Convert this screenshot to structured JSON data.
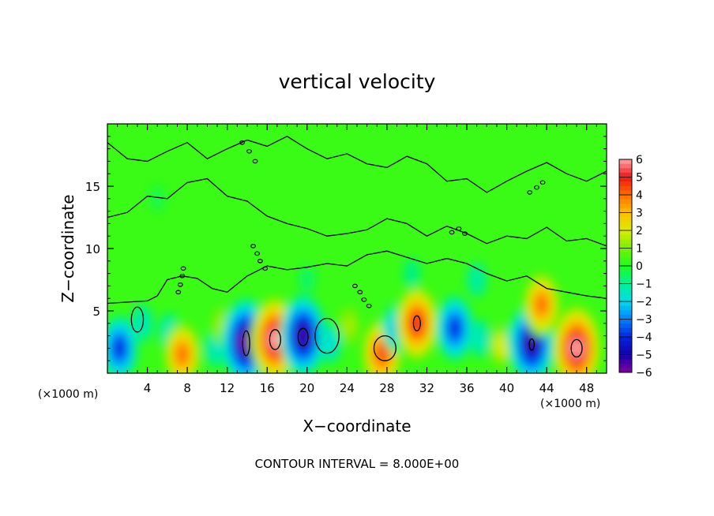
{
  "chart_data": {
    "type": "heatmap",
    "title": "vertical velocity",
    "xlabel": "X−coordinate",
    "ylabel": "Z−coordinate",
    "x_unit_left": "(×1000 m)",
    "x_unit_right": "(×1000 m)",
    "footer": "CONTOUR INTERVAL = 8.000E+00",
    "xlim": [
      0,
      50
    ],
    "ylim": [
      0,
      20
    ],
    "x_ticks": [
      4,
      8,
      12,
      16,
      20,
      24,
      28,
      32,
      36,
      40,
      44,
      48
    ],
    "y_ticks": [
      5,
      10,
      15
    ],
    "colorbar": {
      "range": [
        -6,
        6
      ],
      "ticks": [
        "6",
        "5",
        "4",
        "3",
        "2",
        "1",
        "0",
        "−1",
        "−2",
        "−3",
        "−4",
        "−5",
        "−6"
      ],
      "tick_values": [
        6,
        5,
        4,
        3,
        2,
        1,
        0,
        -1,
        -2,
        -3,
        -4,
        -5,
        -6
      ]
    },
    "background_value": 0.3,
    "features": [
      {
        "x": 1.2,
        "z": 2.0,
        "value": -4.0
      },
      {
        "x": 3.5,
        "z": 4.0,
        "value": -1.5
      },
      {
        "x": 6.2,
        "z": 3.3,
        "value": -1.5
      },
      {
        "x": 7.5,
        "z": 1.5,
        "value": 4.0
      },
      {
        "x": 10.8,
        "z": 2.0,
        "value": -1.5
      },
      {
        "x": 11.5,
        "z": 3.8,
        "value": 1.5
      },
      {
        "x": 13.9,
        "z": 2.5,
        "value": -6.0
      },
      {
        "x": 16.8,
        "z": 2.7,
        "value": 6.0
      },
      {
        "x": 19.6,
        "z": 3.0,
        "value": -5.5
      },
      {
        "x": 22.3,
        "z": 2.4,
        "value": -1.8
      },
      {
        "x": 24.2,
        "z": 3.8,
        "value": 1.5
      },
      {
        "x": 27.5,
        "z": 1.6,
        "value": 4.5
      },
      {
        "x": 28.9,
        "z": 3.6,
        "value": -2.5
      },
      {
        "x": 31.0,
        "z": 4.0,
        "value": 5.0
      },
      {
        "x": 34.8,
        "z": 3.6,
        "value": -4.0
      },
      {
        "x": 37.3,
        "z": 2.8,
        "value": -1.5
      },
      {
        "x": 39.5,
        "z": 2.2,
        "value": 2.0
      },
      {
        "x": 41.0,
        "z": 2.8,
        "value": -1.5
      },
      {
        "x": 42.5,
        "z": 2.4,
        "value": -5.5
      },
      {
        "x": 43.5,
        "z": 5.5,
        "value": 4.0
      },
      {
        "x": 47.0,
        "z": 2.0,
        "value": 6.0
      },
      {
        "x": 37.0,
        "z": 7.5,
        "value": -1.2
      },
      {
        "x": 30.5,
        "z": 8.0,
        "value": -0.8
      },
      {
        "x": 20.0,
        "z": 7.5,
        "value": -0.6
      },
      {
        "x": 5.0,
        "z": 14.0,
        "value": -0.4
      }
    ],
    "contours": [
      {
        "points": [
          [
            0,
            5.6
          ],
          [
            2,
            5.7
          ],
          [
            4,
            5.8
          ],
          [
            5,
            6.2
          ],
          [
            6,
            7.5
          ],
          [
            7.5,
            7.8
          ],
          [
            9,
            7.6
          ],
          [
            10.5,
            6.8
          ],
          [
            12,
            6.5
          ],
          [
            14,
            7.8
          ],
          [
            16,
            8.6
          ],
          [
            18,
            8.3
          ],
          [
            20,
            8.5
          ],
          [
            22,
            8.8
          ],
          [
            24,
            8.6
          ],
          [
            26,
            9.5
          ],
          [
            28,
            9.8
          ],
          [
            30,
            9.3
          ],
          [
            32,
            8.8
          ],
          [
            34,
            9.2
          ],
          [
            36,
            8.8
          ],
          [
            38,
            8.0
          ],
          [
            40,
            7.4
          ],
          [
            42,
            7.8
          ],
          [
            44,
            6.8
          ],
          [
            46,
            6.5
          ],
          [
            48,
            6.2
          ],
          [
            50,
            6.0
          ]
        ]
      },
      {
        "points": [
          [
            0,
            12.5
          ],
          [
            2,
            12.9
          ],
          [
            4,
            14.2
          ],
          [
            6,
            14.0
          ],
          [
            8,
            15.3
          ],
          [
            10,
            15.6
          ],
          [
            12,
            14.2
          ],
          [
            14,
            13.8
          ],
          [
            16,
            12.6
          ],
          [
            18,
            12.0
          ],
          [
            20,
            11.6
          ],
          [
            22,
            11.0
          ],
          [
            24,
            11.2
          ],
          [
            26,
            11.5
          ],
          [
            28,
            12.4
          ],
          [
            30,
            12.0
          ],
          [
            32,
            11.0
          ],
          [
            34,
            11.8
          ],
          [
            36,
            11.2
          ],
          [
            38,
            10.4
          ],
          [
            40,
            11.0
          ],
          [
            42,
            10.8
          ],
          [
            44,
            11.7
          ],
          [
            46,
            10.6
          ],
          [
            48,
            10.8
          ],
          [
            50,
            10.2
          ]
        ]
      },
      {
        "points": [
          [
            0,
            18.5
          ],
          [
            2,
            17.2
          ],
          [
            4,
            17.0
          ],
          [
            6,
            17.8
          ],
          [
            8,
            18.5
          ],
          [
            10,
            17.2
          ],
          [
            12,
            18.0
          ],
          [
            14,
            18.7
          ],
          [
            16,
            18.2
          ],
          [
            18,
            19.0
          ],
          [
            20,
            18.0
          ],
          [
            22,
            17.2
          ],
          [
            24,
            17.6
          ],
          [
            26,
            16.8
          ],
          [
            28,
            16.5
          ],
          [
            30,
            17.4
          ],
          [
            32,
            16.8
          ],
          [
            34,
            15.4
          ],
          [
            36,
            15.6
          ],
          [
            38,
            14.5
          ],
          [
            40,
            15.4
          ],
          [
            42,
            16.2
          ],
          [
            44,
            16.9
          ],
          [
            46,
            16.0
          ],
          [
            48,
            15.4
          ],
          [
            50,
            16.2
          ]
        ]
      }
    ],
    "closed_contours": [
      {
        "x": 16.8,
        "z": 2.7,
        "rx": 0.55,
        "rz": 0.8
      },
      {
        "x": 13.9,
        "z": 2.4,
        "rx": 0.35,
        "rz": 1.0
      },
      {
        "x": 19.6,
        "z": 2.9,
        "rx": 0.5,
        "rz": 0.7
      },
      {
        "x": 47.0,
        "z": 2.0,
        "rx": 0.55,
        "rz": 0.7
      },
      {
        "x": 31.0,
        "z": 4.0,
        "rx": 0.35,
        "rz": 0.6
      },
      {
        "x": 42.5,
        "z": 2.3,
        "rx": 0.25,
        "rz": 0.45
      },
      {
        "x": 3.0,
        "z": 4.3,
        "rx": 0.6,
        "rz": 1.0
      },
      {
        "x": 22.0,
        "z": 3.0,
        "rx": 1.2,
        "rz": 1.4
      },
      {
        "x": 27.8,
        "z": 2.0,
        "rx": 1.1,
        "rz": 1.0
      }
    ],
    "dotted_chains": [
      [
        [
          13.5,
          18.5
        ],
        [
          14.2,
          17.8
        ],
        [
          14.8,
          17.0
        ]
      ],
      [
        [
          14.6,
          10.2
        ],
        [
          15.0,
          9.6
        ],
        [
          15.3,
          9.0
        ],
        [
          15.8,
          8.4
        ]
      ],
      [
        [
          7.6,
          8.4
        ],
        [
          7.5,
          7.8
        ],
        [
          7.3,
          7.1
        ],
        [
          7.1,
          6.5
        ]
      ],
      [
        [
          24.8,
          7.0
        ],
        [
          25.3,
          6.5
        ],
        [
          25.7,
          5.9
        ],
        [
          26.2,
          5.4
        ]
      ],
      [
        [
          34.5,
          11.3
        ],
        [
          35.2,
          11.6
        ],
        [
          35.8,
          11.2
        ]
      ],
      [
        [
          42.3,
          14.5
        ],
        [
          43.0,
          14.9
        ],
        [
          43.6,
          15.3
        ]
      ]
    ]
  }
}
